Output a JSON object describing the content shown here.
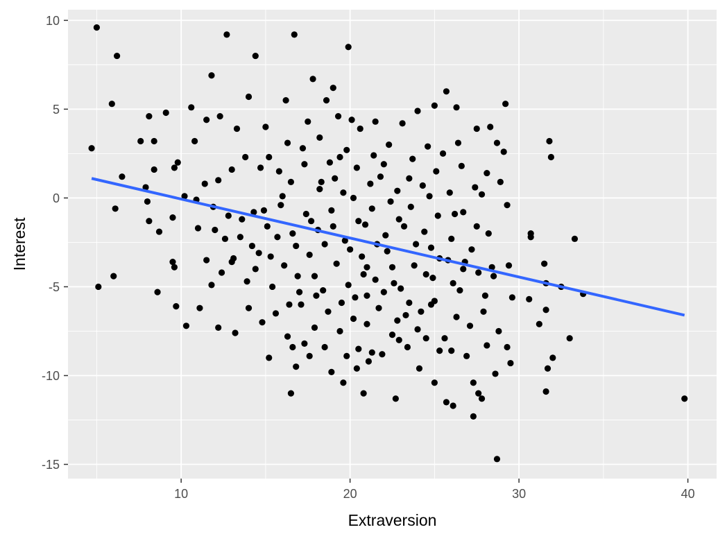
{
  "chart_data": {
    "type": "scatter",
    "xlabel": "Extraversion",
    "ylabel": "Interest",
    "xlim": [
      3.3,
      41.7
    ],
    "ylim": [
      -15.8,
      10.6
    ],
    "x_ticks": [
      10,
      20,
      30,
      40
    ],
    "y_ticks": [
      10,
      5,
      0,
      -5,
      -10,
      -15
    ],
    "x_tick_labels": [
      "10",
      "20",
      "30",
      "40"
    ],
    "y_tick_labels": [
      "10",
      "5",
      "0",
      "-5",
      "-10",
      "-15"
    ],
    "grid": true,
    "panel_background": "#ebebeb",
    "grid_color": "#ffffff",
    "point_color": "#000000",
    "fit_line": {
      "color": "#3366ff",
      "x": [
        4.7,
        39.8
      ],
      "y": [
        1.1,
        -6.6
      ]
    },
    "points": [
      [
        5.0,
        9.6
      ],
      [
        6.2,
        8.0
      ],
      [
        12.7,
        9.2
      ],
      [
        16.7,
        9.2
      ],
      [
        14.4,
        8.0
      ],
      [
        19.9,
        8.5
      ],
      [
        4.7,
        2.8
      ],
      [
        5.9,
        5.3
      ],
      [
        8.1,
        4.6
      ],
      [
        9.1,
        4.8
      ],
      [
        10.6,
        5.1
      ],
      [
        11.8,
        6.9
      ],
      [
        14.0,
        5.7
      ],
      [
        17.8,
        6.7
      ],
      [
        19.0,
        6.2
      ],
      [
        7.6,
        3.2
      ],
      [
        8.4,
        3.2
      ],
      [
        10.8,
        3.2
      ],
      [
        11.5,
        4.4
      ],
      [
        12.3,
        4.6
      ],
      [
        13.3,
        3.9
      ],
      [
        16.2,
        5.5
      ],
      [
        18.6,
        5.5
      ],
      [
        21.5,
        4.3
      ],
      [
        23.1,
        4.2
      ],
      [
        24.0,
        4.9
      ],
      [
        25.0,
        5.2
      ],
      [
        25.7,
        6.0
      ],
      [
        26.3,
        5.1
      ],
      [
        28.3,
        4.0
      ],
      [
        29.2,
        5.3
      ],
      [
        27.5,
        3.9
      ],
      [
        28.7,
        3.1
      ],
      [
        29.1,
        2.6
      ],
      [
        31.8,
        3.2
      ],
      [
        31.9,
        2.3
      ],
      [
        6.5,
        1.2
      ],
      [
        7.9,
        0.6
      ],
      [
        8.0,
        -0.2
      ],
      [
        8.4,
        1.6
      ],
      [
        9.6,
        1.7
      ],
      [
        9.8,
        2.0
      ],
      [
        10.2,
        0.1
      ],
      [
        10.9,
        -0.1
      ],
      [
        11.4,
        0.8
      ],
      [
        12.2,
        1.0
      ],
      [
        13.0,
        1.6
      ],
      [
        13.8,
        2.3
      ],
      [
        14.7,
        1.7
      ],
      [
        15.2,
        2.3
      ],
      [
        15.8,
        1.5
      ],
      [
        16.5,
        0.9
      ],
      [
        17.3,
        1.9
      ],
      [
        18.2,
        0.5
      ],
      [
        19.1,
        1.1
      ],
      [
        19.6,
        0.3
      ],
      [
        20.4,
        1.7
      ],
      [
        21.2,
        0.8
      ],
      [
        22.0,
        1.9
      ],
      [
        22.8,
        0.4
      ],
      [
        23.5,
        1.1
      ],
      [
        24.3,
        0.7
      ],
      [
        25.1,
        1.5
      ],
      [
        25.9,
        0.3
      ],
      [
        26.6,
        1.8
      ],
      [
        27.4,
        0.6
      ],
      [
        28.1,
        1.4
      ],
      [
        28.9,
        0.9
      ],
      [
        29.3,
        -0.4
      ],
      [
        6.1,
        -0.6
      ],
      [
        8.1,
        -1.3
      ],
      [
        8.7,
        -1.9
      ],
      [
        9.5,
        -1.1
      ],
      [
        11.0,
        -1.7
      ],
      [
        11.9,
        -0.5
      ],
      [
        12.8,
        -1.0
      ],
      [
        13.5,
        -2.2
      ],
      [
        14.3,
        -0.8
      ],
      [
        15.1,
        -1.6
      ],
      [
        15.9,
        -0.4
      ],
      [
        16.6,
        -2.0
      ],
      [
        17.4,
        -0.9
      ],
      [
        18.1,
        -1.8
      ],
      [
        18.9,
        -0.7
      ],
      [
        19.7,
        -2.4
      ],
      [
        20.5,
        -1.3
      ],
      [
        21.3,
        -0.6
      ],
      [
        22.1,
        -2.1
      ],
      [
        22.9,
        -1.2
      ],
      [
        23.6,
        -0.5
      ],
      [
        24.4,
        -1.9
      ],
      [
        25.2,
        -1.0
      ],
      [
        26.0,
        -2.3
      ],
      [
        26.7,
        -0.8
      ],
      [
        27.5,
        -1.6
      ],
      [
        28.2,
        -2.0
      ],
      [
        9.5,
        -3.6
      ],
      [
        9.6,
        -3.9
      ],
      [
        9.7,
        -6.1
      ],
      [
        11.1,
        -6.2
      ],
      [
        10.3,
        -7.2
      ],
      [
        11.5,
        -3.5
      ],
      [
        12.4,
        -4.2
      ],
      [
        13.1,
        -3.4
      ],
      [
        13.9,
        -4.7
      ],
      [
        14.6,
        -3.1
      ],
      [
        15.4,
        -5.0
      ],
      [
        16.1,
        -3.8
      ],
      [
        16.9,
        -4.4
      ],
      [
        17.6,
        -3.2
      ],
      [
        18.4,
        -5.2
      ],
      [
        19.2,
        -3.7
      ],
      [
        19.9,
        -4.9
      ],
      [
        20.7,
        -3.3
      ],
      [
        21.5,
        -4.6
      ],
      [
        22.2,
        -3.0
      ],
      [
        23.0,
        -5.1
      ],
      [
        23.8,
        -3.8
      ],
      [
        24.5,
        -4.3
      ],
      [
        25.3,
        -3.4
      ],
      [
        26.1,
        -4.8
      ],
      [
        26.8,
        -3.6
      ],
      [
        27.6,
        -4.2
      ],
      [
        28.4,
        -3.9
      ],
      [
        29.4,
        -3.8
      ],
      [
        30.7,
        -2.0
      ],
      [
        30.7,
        -2.2
      ],
      [
        31.5,
        -3.7
      ],
      [
        33.3,
        -2.3
      ],
      [
        11.8,
        -4.9
      ],
      [
        12.2,
        -7.3
      ],
      [
        13.2,
        -7.6
      ],
      [
        14.0,
        -6.2
      ],
      [
        14.8,
        -7.0
      ],
      [
        15.6,
        -6.5
      ],
      [
        16.3,
        -7.8
      ],
      [
        17.1,
        -6.0
      ],
      [
        17.9,
        -7.3
      ],
      [
        18.7,
        -6.4
      ],
      [
        19.4,
        -7.5
      ],
      [
        20.2,
        -6.8
      ],
      [
        21.0,
        -7.1
      ],
      [
        21.7,
        -6.2
      ],
      [
        22.5,
        -7.7
      ],
      [
        23.3,
        -6.6
      ],
      [
        24.0,
        -7.4
      ],
      [
        24.8,
        -6.0
      ],
      [
        25.6,
        -7.9
      ],
      [
        26.3,
        -6.7
      ],
      [
        27.1,
        -7.2
      ],
      [
        27.9,
        -6.4
      ],
      [
        28.8,
        -7.5
      ],
      [
        29.6,
        -5.6
      ],
      [
        30.6,
        -5.7
      ],
      [
        31.2,
        -7.1
      ],
      [
        31.6,
        -6.3
      ],
      [
        31.6,
        -4.8
      ],
      [
        32.5,
        -5.0
      ],
      [
        33.8,
        -5.4
      ],
      [
        15.2,
        -9.0
      ],
      [
        16.8,
        -9.5
      ],
      [
        17.3,
        -8.2
      ],
      [
        18.9,
        -9.8
      ],
      [
        19.6,
        -10.4
      ],
      [
        20.5,
        -8.5
      ],
      [
        20.8,
        -11.0
      ],
      [
        21.1,
        -9.2
      ],
      [
        21.9,
        -8.8
      ],
      [
        22.7,
        -11.3
      ],
      [
        23.4,
        -8.4
      ],
      [
        24.1,
        -9.6
      ],
      [
        25.0,
        -10.4
      ],
      [
        25.7,
        -11.5
      ],
      [
        26.1,
        -11.7
      ],
      [
        26.0,
        -8.6
      ],
      [
        27.3,
        -10.4
      ],
      [
        27.6,
        -11.0
      ],
      [
        27.8,
        -11.3
      ],
      [
        28.6,
        -9.9
      ],
      [
        28.7,
        -14.7
      ],
      [
        27.3,
        -12.3
      ],
      [
        29.5,
        -9.3
      ],
      [
        31.7,
        -9.6
      ],
      [
        31.6,
        -10.9
      ],
      [
        32.0,
        -9.0
      ],
      [
        33.0,
        -7.9
      ],
      [
        16.5,
        -11.0
      ],
      [
        39.8,
        -11.3
      ],
      [
        5.1,
        -5.0
      ],
      [
        6.0,
        -4.4
      ],
      [
        8.6,
        -5.3
      ],
      [
        18.2,
        3.4
      ],
      [
        19.8,
        2.7
      ],
      [
        20.6,
        3.9
      ],
      [
        21.4,
        2.4
      ],
      [
        17.5,
        4.3
      ],
      [
        16.3,
        3.1
      ],
      [
        15.0,
        4.0
      ],
      [
        22.3,
        3.0
      ],
      [
        23.7,
        2.2
      ],
      [
        24.6,
        2.9
      ],
      [
        25.5,
        2.5
      ],
      [
        26.4,
        3.1
      ],
      [
        19.3,
        4.6
      ],
      [
        20.1,
        4.4
      ],
      [
        18.8,
        2.0
      ],
      [
        17.2,
        2.8
      ],
      [
        21.8,
        1.2
      ],
      [
        16.0,
        0.1
      ],
      [
        14.9,
        -0.7
      ],
      [
        23.2,
        -1.6
      ],
      [
        24.8,
        -2.8
      ],
      [
        22.5,
        -3.9
      ],
      [
        21.0,
        -5.5
      ],
      [
        19.5,
        -5.9
      ],
      [
        18.0,
        -5.5
      ],
      [
        17.0,
        -5.3
      ],
      [
        16.4,
        -6.0
      ],
      [
        20.3,
        -5.6
      ],
      [
        22.0,
        -5.3
      ],
      [
        23.5,
        -5.9
      ],
      [
        25.0,
        -5.8
      ],
      [
        26.5,
        -5.2
      ],
      [
        24.2,
        -6.4
      ],
      [
        22.8,
        -6.9
      ],
      [
        20.0,
        -2.9
      ],
      [
        18.5,
        -2.6
      ],
      [
        17.7,
        -1.3
      ],
      [
        21.6,
        -2.6
      ],
      [
        23.9,
        -2.6
      ],
      [
        25.8,
        -3.5
      ],
      [
        27.2,
        -2.9
      ],
      [
        28.5,
        -4.4
      ],
      [
        19.0,
        -1.6
      ],
      [
        20.9,
        -1.5
      ],
      [
        16.8,
        -2.7
      ],
      [
        15.3,
        -3.3
      ],
      [
        14.2,
        -2.7
      ],
      [
        13.6,
        -1.2
      ],
      [
        12.6,
        -2.3
      ],
      [
        18.3,
        0.9
      ],
      [
        20.2,
        0.0
      ],
      [
        22.4,
        -0.2
      ],
      [
        24.7,
        0.1
      ],
      [
        26.2,
        -0.9
      ],
      [
        27.8,
        0.2
      ],
      [
        19.4,
        2.3
      ],
      [
        21.0,
        -3.9
      ],
      [
        17.9,
        -4.4
      ],
      [
        20.8,
        -4.3
      ],
      [
        22.6,
        -4.8
      ],
      [
        24.9,
        -4.5
      ],
      [
        26.7,
        -4.0
      ],
      [
        28.0,
        -5.5
      ],
      [
        15.7,
        -2.2
      ],
      [
        14.4,
        -4.0
      ],
      [
        13.0,
        -3.6
      ],
      [
        12.0,
        -1.8
      ],
      [
        19.8,
        -8.9
      ],
      [
        21.3,
        -8.7
      ],
      [
        22.9,
        -8.0
      ],
      [
        20.4,
        -9.6
      ],
      [
        18.5,
        -8.4
      ],
      [
        17.6,
        -8.9
      ],
      [
        16.6,
        -8.4
      ],
      [
        24.5,
        -7.9
      ],
      [
        25.3,
        -8.6
      ],
      [
        26.9,
        -8.9
      ],
      [
        28.1,
        -8.3
      ],
      [
        29.3,
        -8.4
      ]
    ]
  }
}
